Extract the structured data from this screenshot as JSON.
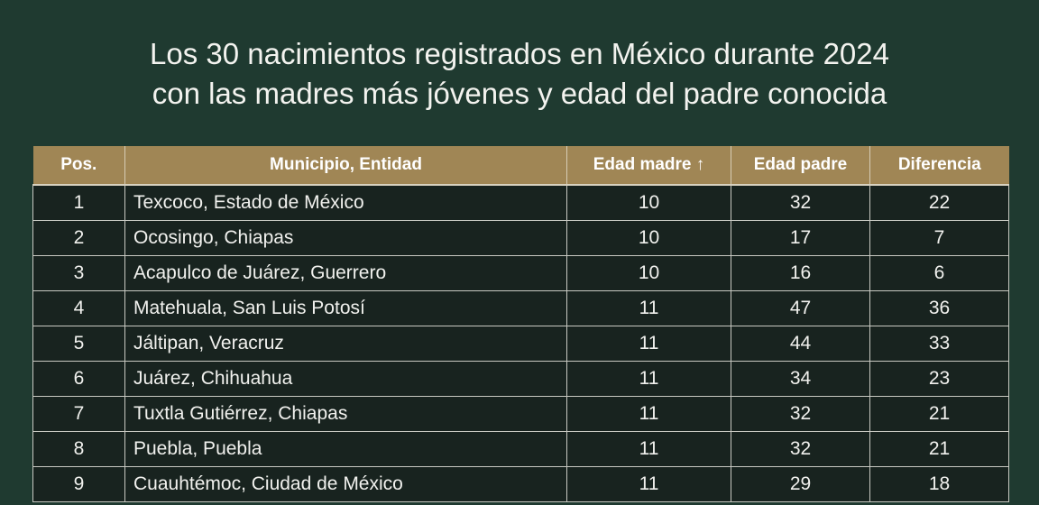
{
  "title": {
    "line1": "Los 30 nacimientos registrados en México durante 2024",
    "line2": "con las madres más jóvenes y edad del padre conocida"
  },
  "table": {
    "headers": [
      "Pos.",
      "Municipio, Entidad",
      "Edad madre ↑",
      "Edad padre",
      "Diferencia"
    ],
    "rows": [
      [
        "1",
        "Texcoco, Estado de México",
        "10",
        "32",
        "22"
      ],
      [
        "2",
        "Ocosingo, Chiapas",
        "10",
        "17",
        "7"
      ],
      [
        "3",
        "Acapulco de Juárez, Guerrero",
        "10",
        "16",
        "6"
      ],
      [
        "4",
        "Matehuala, San Luis Potosí",
        "11",
        "47",
        "36"
      ],
      [
        "5",
        "Jáltipan, Veracruz",
        "11",
        "44",
        "33"
      ],
      [
        "6",
        "Juárez, Chihuahua",
        "11",
        "34",
        "23"
      ],
      [
        "7",
        "Tuxtla Gutiérrez, Chiapas",
        "11",
        "32",
        "21"
      ],
      [
        "8",
        "Puebla, Puebla",
        "11",
        "32",
        "21"
      ],
      [
        "9",
        "Cuauhtémoc, Ciudad de México",
        "11",
        "29",
        "18"
      ]
    ]
  },
  "colors": {
    "background": "#1f3a30",
    "header": "#a08655",
    "row": "#18231f"
  }
}
